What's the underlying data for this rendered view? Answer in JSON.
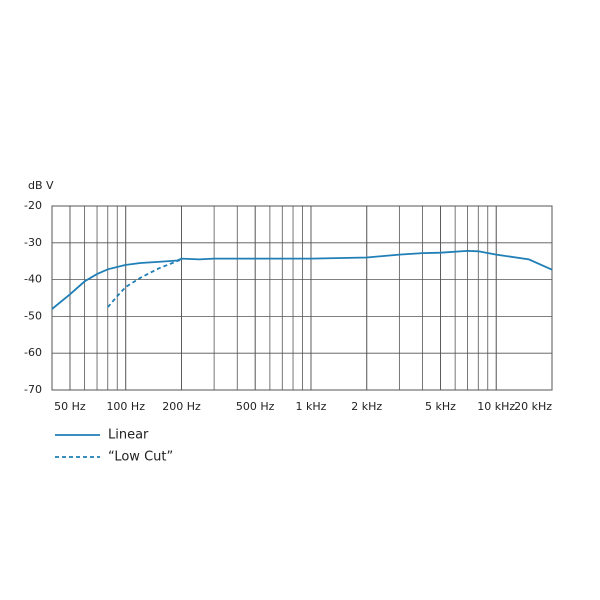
{
  "chart_data": {
    "type": "line",
    "y_label": "dB V",
    "log_x": true,
    "grid": true,
    "xlim": [
      40,
      20000
    ],
    "ylim": [
      -70,
      -20
    ],
    "yticks": [
      -70,
      -60,
      -50,
      -40,
      -30,
      -20
    ],
    "xticks": [
      {
        "value": 50,
        "label": "50 Hz"
      },
      {
        "value": 100,
        "label": "100 Hz"
      },
      {
        "value": 200,
        "label": "200 Hz"
      },
      {
        "value": 500,
        "label": "500 Hz"
      },
      {
        "value": 1000,
        "label": "1 kHz"
      },
      {
        "value": 2000,
        "label": "2 kHz"
      },
      {
        "value": 5000,
        "label": "5 kHz"
      },
      {
        "value": 10000,
        "label": "10 kHz"
      },
      {
        "value": 20000,
        "label": "20 kHz"
      }
    ],
    "series": [
      {
        "name": "Linear",
        "color": "#1f7fb6",
        "dash": false,
        "x": [
          40,
          50,
          60,
          70,
          80,
          100,
          120,
          150,
          190,
          200,
          250,
          300,
          500,
          1000,
          2000,
          3000,
          4000,
          5000,
          7000,
          8000,
          10000,
          15000,
          20000
        ],
        "values": [
          -48,
          -44,
          -40.5,
          -38.5,
          -37.2,
          -36,
          -35.5,
          -35.2,
          -34.8,
          -34.3,
          -34.5,
          -34.3,
          -34.3,
          -34.3,
          -34,
          -33.2,
          -32.8,
          -32.7,
          -32.2,
          -32.3,
          -33.2,
          -34.5,
          -37.3
        ]
      },
      {
        "name": "“Low Cut”",
        "color": "#1f7fb6",
        "dash": true,
        "x": [
          80,
          90,
          100,
          120,
          150,
          200
        ],
        "values": [
          -47.5,
          -44.5,
          -42,
          -39.5,
          -37,
          -34.5
        ]
      }
    ]
  }
}
